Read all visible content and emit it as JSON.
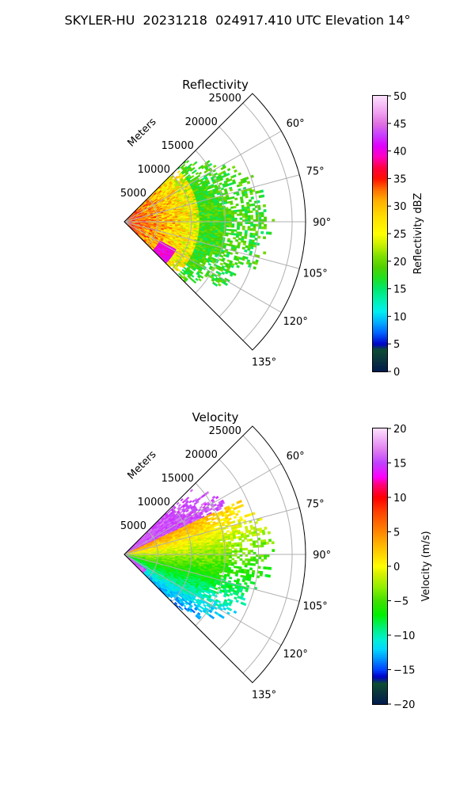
{
  "suptitle": "SKYLER-HU  20231218  024917.410 UTC Elevation 14°",
  "chart_data": [
    {
      "type": "heatmap",
      "title": "Reflectivity",
      "range_label": "Meters",
      "range_ticks": [
        "5000",
        "10000",
        "15000",
        "20000",
        "25000"
      ],
      "range_values": [
        5000,
        10000,
        15000,
        20000,
        25000
      ],
      "range_max": 27000,
      "azimuth_ticks": [
        "60°",
        "75°",
        "90°",
        "105°",
        "120°",
        "135°"
      ],
      "azimuth_values": [
        60,
        75,
        90,
        105,
        120,
        135
      ],
      "azimuth_range": [
        45,
        135
      ],
      "grid": true,
      "colorbar": {
        "label": "Reflectivity dBZ",
        "ticks": [
          "0",
          "5",
          "10",
          "15",
          "20",
          "25",
          "30",
          "35",
          "40",
          "45",
          "50"
        ],
        "tick_values": [
          0,
          5,
          10,
          15,
          20,
          25,
          30,
          35,
          40,
          45,
          50
        ],
        "vmin": 0,
        "vmax": 50,
        "stops": [
          [
            0,
            "#001a4d"
          ],
          [
            2,
            "#0a3340"
          ],
          [
            4,
            "#0d4d33"
          ],
          [
            5,
            "#0000c8"
          ],
          [
            7,
            "#0060ff"
          ],
          [
            9,
            "#00b0ff"
          ],
          [
            11,
            "#00f0f0"
          ],
          [
            13,
            "#00f0b0"
          ],
          [
            15,
            "#00e870"
          ],
          [
            17,
            "#20e020"
          ],
          [
            19,
            "#50d000"
          ],
          [
            21,
            "#80e000"
          ],
          [
            23,
            "#c8f000"
          ],
          [
            25,
            "#ffff00"
          ],
          [
            28,
            "#ffe000"
          ],
          [
            31,
            "#ffb000"
          ],
          [
            33,
            "#ff7000"
          ],
          [
            35,
            "#ff1000"
          ],
          [
            37,
            "#ff0040"
          ],
          [
            39,
            "#ff00c0"
          ],
          [
            41,
            "#e000ff"
          ],
          [
            43,
            "#c840ff"
          ],
          [
            45,
            "#e070e0"
          ],
          [
            47,
            "#f0a0f0"
          ],
          [
            50,
            "#fce0fc"
          ]
        ]
      }
    },
    {
      "type": "heatmap",
      "title": "Velocity",
      "range_label": "Meters",
      "range_ticks": [
        "5000",
        "10000",
        "15000",
        "20000",
        "25000"
      ],
      "range_values": [
        5000,
        10000,
        15000,
        20000,
        25000
      ],
      "range_max": 27000,
      "azimuth_ticks": [
        "60°",
        "75°",
        "90°",
        "105°",
        "120°",
        "135°"
      ],
      "azimuth_values": [
        60,
        75,
        90,
        105,
        120,
        135
      ],
      "azimuth_range": [
        45,
        135
      ],
      "grid": true,
      "colorbar": {
        "label": "Velocity (m/s)",
        "ticks": [
          "−20",
          "−15",
          "−10",
          "−5",
          "0",
          "5",
          "10",
          "15",
          "20"
        ],
        "tick_values": [
          -20,
          -15,
          -10,
          -5,
          0,
          5,
          10,
          15,
          20
        ],
        "vmin": -20,
        "vmax": 20,
        "stops": [
          [
            -20,
            "#001a4d"
          ],
          [
            -18.5,
            "#0a3340"
          ],
          [
            -17,
            "#0d4d33"
          ],
          [
            -16,
            "#0000c8"
          ],
          [
            -15,
            "#0040ff"
          ],
          [
            -13.5,
            "#0090ff"
          ],
          [
            -12,
            "#00d8ff"
          ],
          [
            -10.5,
            "#00f0d0"
          ],
          [
            -9,
            "#00f080"
          ],
          [
            -7,
            "#00f000"
          ],
          [
            -5,
            "#40e000"
          ],
          [
            -3,
            "#90f000"
          ],
          [
            -1,
            "#d8f000"
          ],
          [
            0,
            "#ffff00"
          ],
          [
            2,
            "#ffd000"
          ],
          [
            4,
            "#ffa000"
          ],
          [
            6,
            "#ff7000"
          ],
          [
            8,
            "#ff4000"
          ],
          [
            10,
            "#ff0000"
          ],
          [
            12,
            "#ff0080"
          ],
          [
            13,
            "#ff00ff"
          ],
          [
            15,
            "#c040ff"
          ],
          [
            17,
            "#e080f0"
          ],
          [
            20,
            "#fce0fc"
          ]
        ]
      }
    }
  ]
}
